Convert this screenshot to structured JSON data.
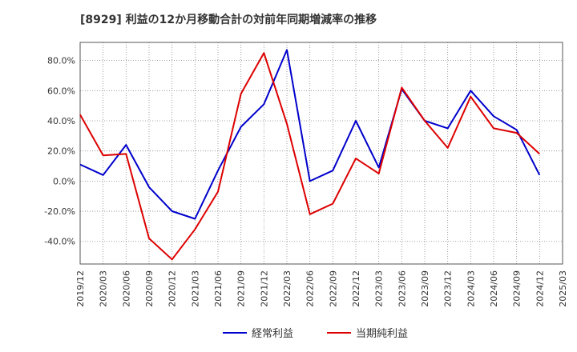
{
  "chart_data": {
    "type": "line",
    "title": "[8929]  利益の12か月移動合計の対前年同期増減率の推移",
    "xlabel": "",
    "ylabel": "",
    "ylim": [
      -55,
      92
    ],
    "yticks": [
      80,
      60,
      40,
      20,
      0,
      -20,
      -40
    ],
    "ytick_labels": [
      "80.0%",
      "60.0%",
      "40.0%",
      "20.0%",
      "0.0%",
      "-20.0%",
      "-40.0%"
    ],
    "categories": [
      "2019/12",
      "2020/03",
      "2020/06",
      "2020/09",
      "2020/12",
      "2021/03",
      "2021/06",
      "2021/09",
      "2021/12",
      "2022/03",
      "2022/06",
      "2022/09",
      "2022/12",
      "2023/03",
      "2023/06",
      "2023/09",
      "2023/12",
      "2024/03",
      "2024/06",
      "2024/09",
      "2024/12",
      "2025/03"
    ],
    "series": [
      {
        "name": "経常利益",
        "color": "#0000cc",
        "values": [
          11,
          4,
          24,
          -4,
          -20,
          -25,
          7,
          36,
          51,
          87,
          0,
          7,
          40,
          9,
          61,
          40,
          35,
          60,
          43,
          34,
          4,
          null
        ]
      },
      {
        "name": "当期純利益",
        "color": "#dd0000",
        "values": [
          44,
          17,
          18,
          -38,
          -52,
          -32,
          -7,
          58,
          85,
          38,
          -22,
          -15,
          15,
          5,
          62,
          40,
          22,
          56,
          35,
          32,
          18,
          null
        ]
      }
    ],
    "grid": true,
    "legend": "bottom-center"
  }
}
